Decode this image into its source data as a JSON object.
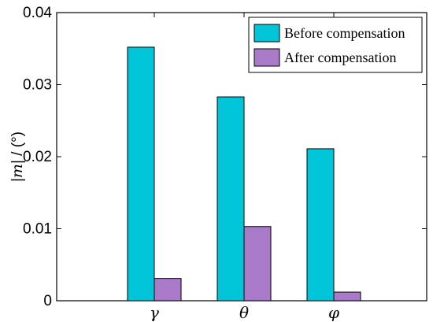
{
  "chart_data": {
    "type": "bar",
    "categories": [
      "γ",
      "θ",
      "φ"
    ],
    "series": [
      {
        "name": "Before compensation",
        "values": [
          0.0352,
          0.0283,
          0.0211
        ],
        "color": "#00C5D8"
      },
      {
        "name": "After compensation",
        "values": [
          0.0031,
          0.0103,
          0.0012
        ],
        "color": "#A87AC8"
      }
    ],
    "ylabel": "|m| / (°)",
    "ylim": [
      0,
      0.04
    ],
    "yticks": [
      "0",
      "0.01",
      "0.02",
      "0.03",
      "0.04"
    ],
    "legend_position": "top-right",
    "grid": false
  }
}
